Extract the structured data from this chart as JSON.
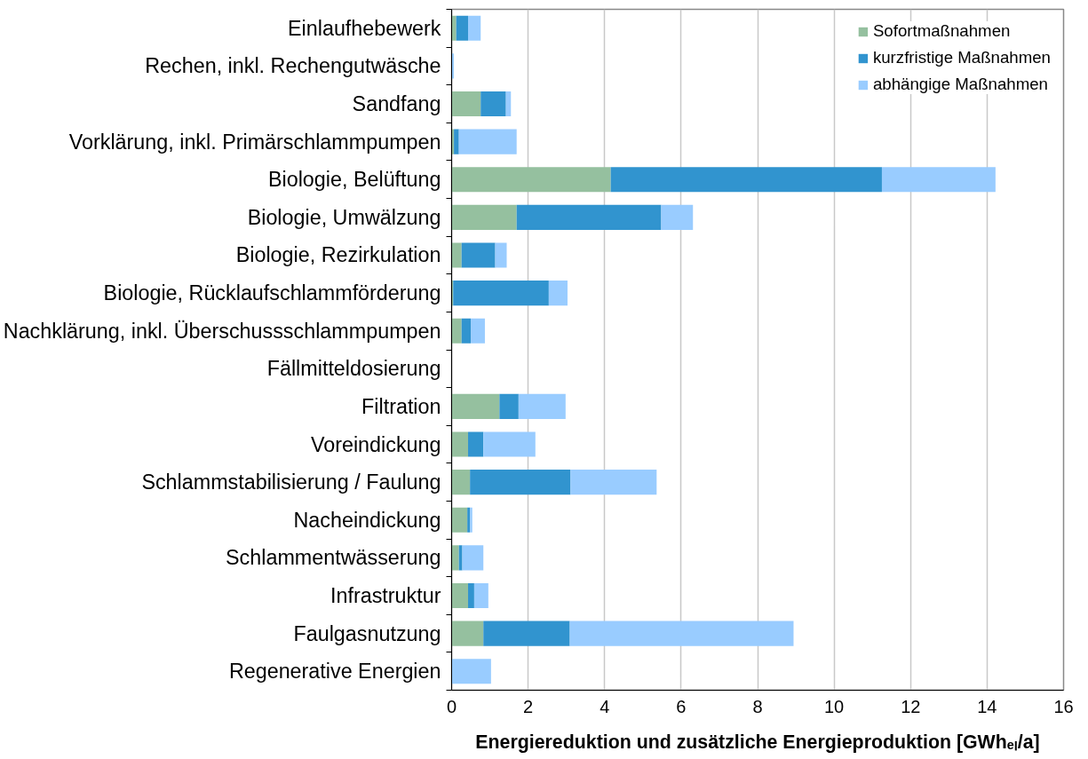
{
  "chart_data": {
    "type": "bar",
    "orientation": "horizontal",
    "stacked": true,
    "xlabel": "Energiereduktion und zusätzliche Energieproduktion [GWhₑₗ/a]",
    "categories": [
      "Einlaufhebewerk",
      "Rechen, inkl. Rechengutwäsche",
      "Sandfang",
      "Vorklärung, inkl. Primärschlammpumpen",
      "Biologie, Belüftung",
      "Biologie, Umwälzung",
      "Biologie, Rezirkulation",
      "Biologie, Rücklaufschlammförderung",
      "Nachklärung, inkl. Überschussschlammpumpen",
      "Fällmitteldosierung",
      "Filtration",
      "Voreindickung",
      "Schlammstabilisierung / Faulung",
      "Nacheindickung",
      "Schlammentwässerung",
      "Infrastruktur",
      "Faulgasnutzung",
      "Regenerative Energien"
    ],
    "series": [
      {
        "name": "Sofortmaßnahmen",
        "color": "#95c09f",
        "values": [
          0.12,
          0,
          0.76,
          0.06,
          4.16,
          1.7,
          0.26,
          0.04,
          0.26,
          0,
          1.25,
          0.43,
          0.48,
          0.41,
          0.19,
          0.43,
          0.83,
          0
        ]
      },
      {
        "name": "kurzfristige Maßnahmen",
        "color": "#3194cf",
        "values": [
          0.31,
          0,
          0.66,
          0.13,
          7.09,
          3.78,
          0.88,
          2.5,
          0.24,
          0,
          0.5,
          0.4,
          2.63,
          0.07,
          0.09,
          0.16,
          2.26,
          0
        ]
      },
      {
        "name": "abhängige Maßnahmen",
        "color": "#99ccff",
        "values": [
          0.33,
          0.06,
          0.13,
          1.51,
          2.97,
          0.83,
          0.3,
          0.49,
          0.37,
          0,
          1.23,
          1.36,
          2.25,
          0.06,
          0.55,
          0.37,
          5.85,
          1.03
        ]
      }
    ],
    "xlim": [
      0,
      16
    ],
    "xticks": [
      0,
      2,
      4,
      6,
      8,
      10,
      12,
      14,
      16
    ],
    "grid": "x",
    "legend": "top right"
  }
}
